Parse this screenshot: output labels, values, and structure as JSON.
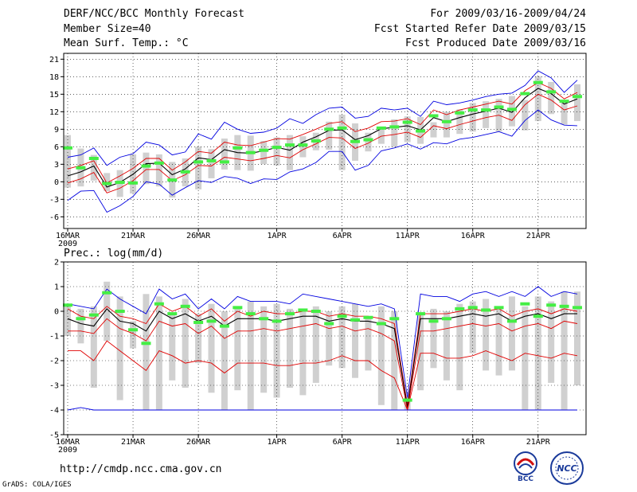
{
  "header": {
    "title": "DERF/NCC/BCC Monthly Forecast",
    "member_size": "Member Size=40",
    "variable": "Mean Surf. Temp.: °C",
    "fcst_period": "For 2009/03/16-2009/04/24",
    "fcst_started": "Fcst Started Refer Date 2009/03/15",
    "fcst_produced": "Fcst Produced Date 2009/03/16"
  },
  "footer": {
    "url": "http://cmdp.ncc.cma.gov.cn",
    "grads_credit": "GrADS: COLA/IGES",
    "logo_bcc_label": "BCC",
    "logo_ncc_label": "NCC"
  },
  "colors": {
    "ensemble_mean": "#000000",
    "spread_lines": "#e00000",
    "envelope": "#0000e0",
    "observed_marks": "#44ee44",
    "box_range": "#d0d0d0",
    "grid": "#000000"
  },
  "chart_data": [
    {
      "type": "line",
      "title": "Mean Surf. Temp.: °C",
      "x_start": "2009-03-16",
      "days": 40,
      "xticks": [
        {
          "day": 0,
          "label": "16MAR",
          "sub": "2009"
        },
        {
          "day": 5,
          "label": "21MAR"
        },
        {
          "day": 10,
          "label": "26MAR"
        },
        {
          "day": 16,
          "label": "1APR"
        },
        {
          "day": 21,
          "label": "6APR"
        },
        {
          "day": 26,
          "label": "11APR"
        },
        {
          "day": 31,
          "label": "16APR"
        },
        {
          "day": 36,
          "label": "21APR"
        }
      ],
      "ylim": [
        -8,
        22
      ],
      "yticks": [
        -6,
        -3,
        0,
        3,
        6,
        9,
        12,
        15,
        18,
        21
      ],
      "box_high": [
        8,
        5.7,
        4.6,
        1.5,
        2,
        4.7,
        5,
        4.7,
        3.4,
        4,
        6,
        5.6,
        7.4,
        8,
        7.9,
        7,
        7.6,
        8,
        7.8,
        8.4,
        10.3,
        11.5,
        10,
        8.4,
        9.2,
        10.7,
        11.2,
        11.1,
        10.2,
        12,
        12.4,
        13.5,
        13.8,
        14.2,
        14.7,
        14,
        18.1,
        17.1,
        13.6,
        16.7
      ],
      "box_low": [
        -1,
        -0.8,
        0.2,
        -1.6,
        -2.6,
        -2,
        -0.4,
        -0.8,
        -2.7,
        -0.8,
        -1.3,
        0.6,
        2.1,
        2,
        1.9,
        3,
        2.8,
        2,
        4.2,
        5.4,
        5.5,
        2,
        3.6,
        5.2,
        6.5,
        6,
        6.8,
        6.5,
        7.6,
        7.6,
        8.2,
        8.6,
        9.2,
        8.6,
        9.5,
        8.8,
        10.4,
        11.6,
        9.8,
        10.4
      ],
      "observed": [
        5.8,
        2.4,
        4,
        -0.3,
        -0.1,
        -0.2,
        2.7,
        3.2,
        0.3,
        1.7,
        3.4,
        3.6,
        3.4,
        5.8,
        5,
        5.4,
        5.9,
        6.3,
        6.3,
        7,
        9,
        9.2,
        6.9,
        7.2,
        9.2,
        9.4,
        10.2,
        8.7,
        11.3,
        10.3,
        11.8,
        12.3,
        12.3,
        12.8,
        12.4,
        15.1,
        17,
        15.4,
        13.8,
        14.6
      ],
      "series": [
        {
          "name": "envelope_max",
          "color": "#0000e0",
          "values": [
            4.2,
            4.6,
            5.8,
            2.8,
            4.2,
            4.8,
            6.8,
            6.3,
            4.6,
            5.1,
            8.2,
            7.3,
            10.2,
            9,
            8.3,
            8.5,
            9.2,
            10.8,
            10,
            11.5,
            12.6,
            12.8,
            10.9,
            11.2,
            12.6,
            12.3,
            12.6,
            11.2,
            13.8,
            13.2,
            13.5,
            14,
            14.6,
            15,
            15.2,
            16.5,
            19,
            17.8,
            15.3,
            17.4
          ]
        },
        {
          "name": "spread_upper",
          "color": "#e00000",
          "values": [
            2.2,
            2.8,
            3.6,
            -0.2,
            1,
            2.3,
            4,
            4,
            2,
            3.4,
            5.2,
            4.9,
            6.8,
            6.3,
            6.2,
            6.8,
            7.4,
            7.3,
            8.1,
            9,
            10,
            10.3,
            8.6,
            9.2,
            10.3,
            10.4,
            10.8,
            9.8,
            12.3,
            11.5,
            12.3,
            12.8,
            13.3,
            13.8,
            13.3,
            15.6,
            17,
            16,
            14.2,
            15.3
          ]
        },
        {
          "name": "ensemble_mean",
          "color": "#000000",
          "values": [
            1,
            1.7,
            2.7,
            -0.9,
            -0.1,
            1.3,
            3.1,
            3.2,
            1.2,
            2.2,
            4.1,
            3.8,
            5.5,
            5,
            4.9,
            5.3,
            5.9,
            5.4,
            6.8,
            7.7,
            8.8,
            8.9,
            7.2,
            7.9,
            9.1,
            9.3,
            9.6,
            8.9,
            11,
            10.3,
            11,
            11.6,
            12.1,
            12.6,
            11.9,
            14.4,
            16,
            15.1,
            13.3,
            14.2
          ]
        },
        {
          "name": "spread_lower",
          "color": "#e00000",
          "values": [
            -0.2,
            0.5,
            1.6,
            -1.9,
            -1.1,
            0.2,
            2.1,
            2.1,
            0.2,
            1.2,
            2.8,
            2.7,
            4.2,
            3.9,
            3.6,
            4,
            4.5,
            4.1,
            5.5,
            6.5,
            7.6,
            7.5,
            5.7,
            6.6,
            7.8,
            8.1,
            8.5,
            7.6,
            9.6,
            9.1,
            9.8,
            10.4,
            11,
            11.4,
            10.5,
            13.2,
            15,
            14,
            12.3,
            13
          ]
        },
        {
          "name": "envelope_min",
          "color": "#0000e0",
          "values": [
            -3.2,
            -1.6,
            -1.5,
            -5.2,
            -4.1,
            -2.5,
            0,
            -0.4,
            -2.3,
            -1,
            0.2,
            -0.1,
            0.9,
            0.6,
            -0.3,
            0.5,
            0.4,
            1.7,
            2.2,
            3.3,
            5.2,
            5.2,
            2,
            2.8,
            5.3,
            5.8,
            6.5,
            5.6,
            6.7,
            6.5,
            7.3,
            7.6,
            8.1,
            8.6,
            7.8,
            10.5,
            12.3,
            10.6,
            9.7,
            9.6
          ]
        }
      ]
    },
    {
      "type": "line",
      "title": "Prec.: log(mm/d)",
      "x_start": "2009-03-16",
      "days": 40,
      "xticks": [
        {
          "day": 0,
          "label": "16MAR",
          "sub": "2009"
        },
        {
          "day": 5,
          "label": "21MAR"
        },
        {
          "day": 10,
          "label": "26MAR"
        },
        {
          "day": 16,
          "label": "1APR"
        },
        {
          "day": 21,
          "label": "6APR"
        },
        {
          "day": 26,
          "label": "11APR"
        },
        {
          "day": 31,
          "label": "16APR"
        },
        {
          "day": 36,
          "label": "21APR"
        }
      ],
      "ylim": [
        -5,
        2
      ],
      "yticks": [
        -5,
        -4,
        -3,
        -2,
        -1,
        0,
        1,
        2
      ],
      "box_high": [
        0.3,
        0.1,
        0.2,
        1.2,
        0.6,
        -0.4,
        0.7,
        0.6,
        -0.1,
        0.5,
        -0.1,
        0.3,
        0,
        0.1,
        0.4,
        0.2,
        0.3,
        0.1,
        0.1,
        0.2,
        0,
        0.2,
        0.3,
        -0.2,
        0.2,
        0,
        -3.5,
        -0.1,
        0.1,
        0,
        0.3,
        0.4,
        0.5,
        0.2,
        0.6,
        0.2,
        0.6,
        0.4,
        0.8,
        0.8
      ],
      "box_low": [
        -1,
        -1.3,
        -3.1,
        -1.2,
        -3.6,
        -1.5,
        -4,
        -4,
        -2.8,
        -3.1,
        -2.1,
        -3.3,
        -4,
        -3.2,
        -4,
        -3.3,
        -3.5,
        -3.1,
        -3.4,
        -2.9,
        -2.2,
        -2.3,
        -2.7,
        -2.4,
        -3.8,
        -4,
        -4,
        -3.2,
        -2.3,
        -2.8,
        -3.2,
        -1.7,
        -2.4,
        -2.6,
        -2.4,
        -4,
        -4,
        -2.9,
        -4,
        -3
      ],
      "observed": [
        0.25,
        -0.3,
        -0.15,
        0.75,
        0,
        -0.75,
        -1.3,
        0.3,
        -0.1,
        0.2,
        -0.45,
        -0.4,
        -0.6,
        0.15,
        -0.1,
        -0.3,
        -0.4,
        -0.1,
        0.05,
        0,
        -0.5,
        -0.2,
        -0.35,
        -0.25,
        -0.5,
        -0.3,
        -3.6,
        -0.1,
        -0.4,
        -0.3,
        0.1,
        0.15,
        0.05,
        0.15,
        -0.4,
        0.3,
        -0.2,
        0.25,
        0.2,
        0.15
      ],
      "series": [
        {
          "name": "envelope_max",
          "color": "#0000e0",
          "values": [
            0.3,
            0.2,
            0.1,
            0.9,
            0.5,
            0.2,
            -0.1,
            0.9,
            0.5,
            0.7,
            0.1,
            0.5,
            0.1,
            0.6,
            0.4,
            0.4,
            0.4,
            0.3,
            0.7,
            0.6,
            0.5,
            0.4,
            0.3,
            0.2,
            0.3,
            0.1,
            -3.5,
            0.7,
            0.6,
            0.6,
            0.4,
            0.7,
            0.8,
            0.6,
            0.8,
            0.6,
            1,
            0.6,
            0.8,
            0.7
          ]
        },
        {
          "name": "spread_upper",
          "color": "#e00000",
          "values": [
            0.1,
            -0.2,
            -0.3,
            0.2,
            -0.2,
            -0.3,
            -0.5,
            0.3,
            0,
            0.2,
            -0.2,
            0.1,
            -0.4,
            0,
            -0.2,
            0,
            -0.1,
            -0.1,
            0,
            0,
            -0.2,
            -0.1,
            -0.2,
            -0.2,
            -0.3,
            -0.5,
            -3.8,
            -0.1,
            -0.1,
            -0.1,
            0,
            0.1,
            0,
            0.1,
            -0.2,
            0,
            0.1,
            -0.1,
            0.1,
            0
          ]
        },
        {
          "name": "ensemble_mean",
          "color": "#000000",
          "values": [
            -0.3,
            -0.5,
            -0.6,
            0.1,
            -0.4,
            -0.5,
            -0.8,
            0,
            -0.3,
            -0.1,
            -0.4,
            -0.2,
            -0.6,
            -0.3,
            -0.3,
            -0.3,
            -0.4,
            -0.3,
            -0.2,
            -0.2,
            -0.4,
            -0.3,
            -0.4,
            -0.4,
            -0.5,
            -0.7,
            -3.9,
            -0.3,
            -0.3,
            -0.3,
            -0.2,
            -0.1,
            -0.2,
            -0.1,
            -0.4,
            -0.2,
            -0.1,
            -0.3,
            -0.1,
            -0.1
          ]
        },
        {
          "name": "spread_lower",
          "color": "#e00000",
          "values": [
            -0.8,
            -0.8,
            -0.9,
            -0.3,
            -0.7,
            -0.9,
            -1.2,
            -0.4,
            -0.6,
            -0.5,
            -0.9,
            -0.6,
            -1.1,
            -0.8,
            -0.8,
            -0.7,
            -0.8,
            -0.7,
            -0.6,
            -0.5,
            -0.7,
            -0.6,
            -0.8,
            -0.7,
            -0.9,
            -1.2,
            -4,
            -0.8,
            -0.8,
            -0.7,
            -0.6,
            -0.5,
            -0.6,
            -0.5,
            -0.8,
            -0.6,
            -0.5,
            -0.7,
            -0.4,
            -0.5
          ]
        },
        {
          "name": "lowest_member",
          "color": "#e00000",
          "values": [
            -1.6,
            -1.6,
            -2,
            -1.2,
            -1.6,
            -2,
            -2.4,
            -1.6,
            -1.8,
            -2.1,
            -2,
            -2.1,
            -2.5,
            -2.1,
            -2.1,
            -2.1,
            -2.2,
            -2.2,
            -2.1,
            -2.1,
            -2,
            -1.8,
            -2,
            -2,
            -2.4,
            -2.7,
            -4,
            -1.7,
            -1.7,
            -1.9,
            -1.9,
            -1.8,
            -1.6,
            -1.8,
            -2,
            -1.7,
            -1.8,
            -1.9,
            -1.7,
            -1.8
          ]
        },
        {
          "name": "envelope_min",
          "color": "#0000e0",
          "values": [
            -4,
            -3.9,
            -4,
            -4,
            -4,
            -4,
            -4,
            -4,
            -4,
            -4,
            -4,
            -4,
            -4,
            -4,
            -4,
            -4,
            -4,
            -4,
            -4,
            -4,
            -4,
            -4,
            -4,
            -4,
            -4,
            -4,
            -4,
            -4,
            -4,
            -4,
            -4,
            -4,
            -4,
            -4,
            -4,
            -4,
            -4,
            -4,
            -4,
            -4
          ]
        }
      ]
    }
  ]
}
